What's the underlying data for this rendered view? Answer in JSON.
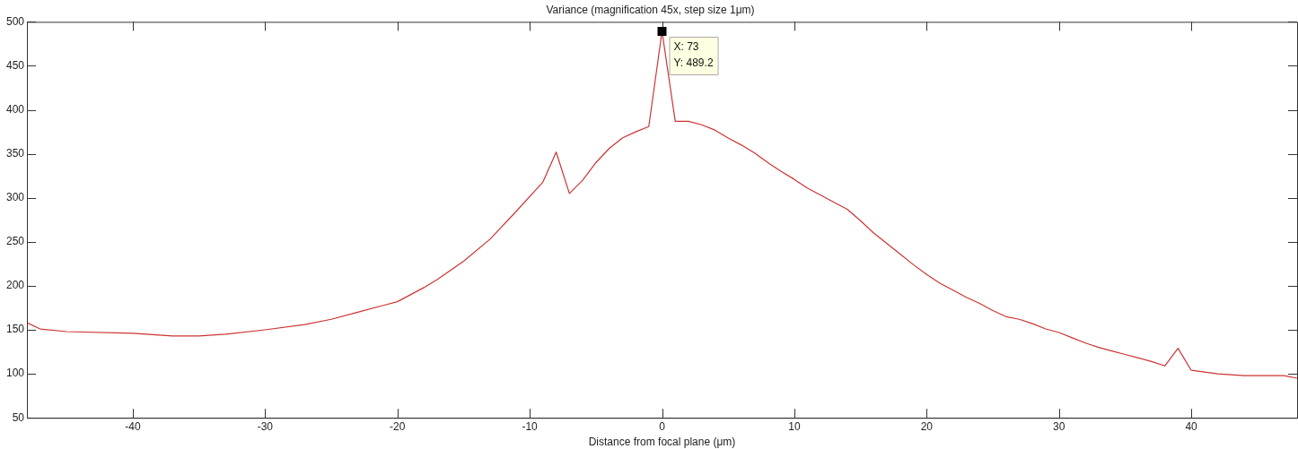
{
  "chart_data": {
    "type": "line",
    "title": "Variance (magnification 45x, step size 1μm)",
    "xlabel": "Distance from focal plane (μm)",
    "x": [
      -48,
      -47,
      -45,
      -40,
      -37,
      -35,
      -33,
      -30,
      -27,
      -25,
      -23,
      -21,
      -20,
      -18,
      -17,
      -15,
      -13,
      -11,
      -9,
      -8,
      -7,
      -6,
      -5,
      -4,
      -3,
      -2,
      -1,
      0,
      1,
      2,
      3,
      4,
      5,
      6,
      7,
      8,
      9,
      10,
      11,
      12,
      13,
      14,
      15,
      16,
      17,
      18,
      19,
      20,
      21,
      22,
      23,
      24,
      25,
      26,
      27,
      28,
      29,
      30,
      31,
      32,
      33,
      34,
      35,
      36,
      37,
      38,
      39,
      40,
      41,
      42,
      43,
      44,
      45,
      46,
      47,
      48
    ],
    "series": [
      {
        "color": "#cc3333",
        "values": [
          158,
          151,
          148,
          146,
          143,
          143,
          145,
          150,
          156,
          162,
          170,
          178,
          182,
          198,
          207,
          228,
          253,
          285,
          318,
          352,
          305,
          320,
          340,
          356,
          368,
          375,
          381,
          489.2,
          387,
          387,
          383,
          377,
          368,
          360,
          351,
          340,
          330,
          321,
          311,
          303,
          295,
          287,
          274,
          260,
          248,
          236,
          224,
          213,
          203,
          195,
          187,
          180,
          172,
          165,
          162,
          157,
          151,
          147,
          141,
          135,
          130,
          126,
          122,
          118,
          114,
          109,
          129,
          104,
          102,
          100,
          99,
          98,
          98,
          98,
          98,
          95
        ]
      }
    ],
    "xlim": [
      -48,
      48
    ],
    "xticks": [
      -40,
      -30,
      -20,
      -10,
      0,
      10,
      20,
      30,
      40
    ],
    "ylim": [
      50,
      500
    ],
    "yticks": [
      50,
      100,
      150,
      200,
      250,
      300,
      350,
      400,
      450,
      500
    ],
    "grid": false,
    "legend": false,
    "marker": "none",
    "line_style": "solid",
    "annotations": [
      {
        "text": "X: 73\nY: 489.2",
        "x": 0,
        "y": 489.2
      }
    ]
  }
}
